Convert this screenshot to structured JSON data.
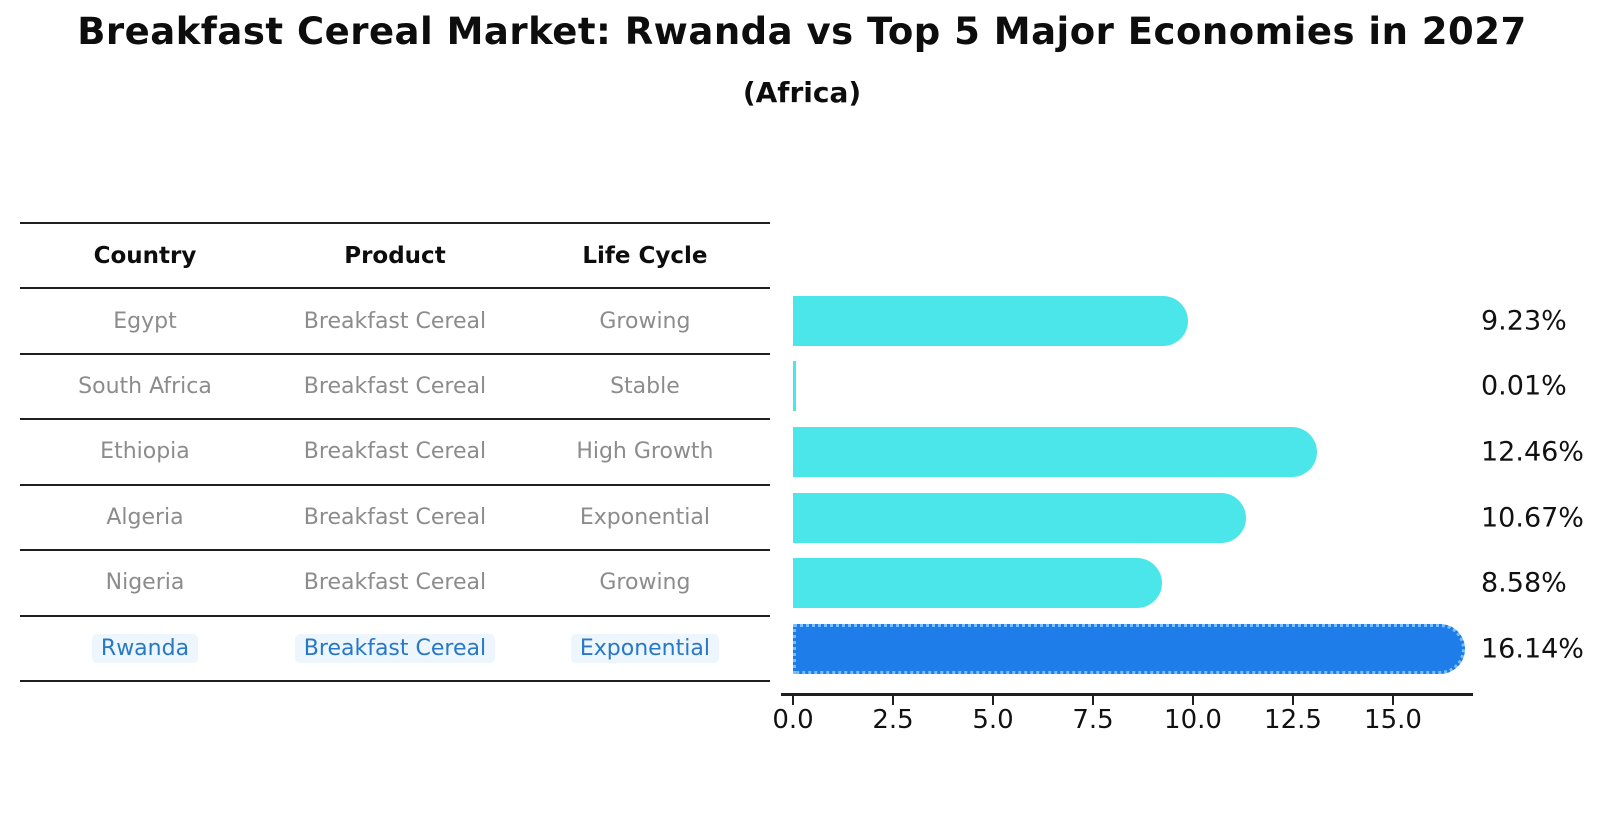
{
  "chart_data": {
    "type": "bar",
    "orientation": "horizontal",
    "title": "Breakfast Cereal Market: Rwanda vs Top 5 Major Economies in 2027",
    "subtitle": "(Africa)",
    "columns": [
      "Country",
      "Product",
      "Life Cycle"
    ],
    "rows": [
      {
        "country": "Egypt",
        "product": "Breakfast Cereal",
        "life_cycle": "Growing",
        "value": 9.23,
        "label": "9.23%",
        "highlight": false
      },
      {
        "country": "South Africa",
        "product": "Breakfast Cereal",
        "life_cycle": "Stable",
        "value": 0.01,
        "label": "0.01%",
        "highlight": false
      },
      {
        "country": "Ethiopia",
        "product": "Breakfast Cereal",
        "life_cycle": "High Growth",
        "value": 12.46,
        "label": "12.46%",
        "highlight": false
      },
      {
        "country": "Algeria",
        "product": "Breakfast Cereal",
        "life_cycle": "Exponential",
        "value": 10.67,
        "label": "10.67%",
        "highlight": false
      },
      {
        "country": "Nigeria",
        "product": "Breakfast Cereal",
        "life_cycle": "Growing",
        "value": 8.58,
        "label": "8.58%",
        "highlight": false
      },
      {
        "country": "Rwanda",
        "product": "Breakfast Cereal",
        "life_cycle": "Exponential",
        "value": 16.14,
        "label": "16.14%",
        "highlight": true
      }
    ],
    "x_ticks": [
      0.0,
      2.5,
      5.0,
      7.5,
      10.0,
      12.5,
      15.0
    ],
    "x_tick_labels": [
      "0.0",
      "2.5",
      "5.0",
      "7.5",
      "10.0",
      "12.5",
      "15.0"
    ],
    "xlim": [
      0,
      17.0
    ],
    "xlabel": "",
    "ylabel": "",
    "grid": "off",
    "legend": "none",
    "colors": {
      "bar": "#4be6ea",
      "highlight_bar": "#1e7de8",
      "highlight_border": "#79bfff",
      "highlight_text": "#2878c8",
      "row_text": "#8c8c8c",
      "header_text": "#0d0d0d",
      "axis": "#1f1f1f"
    }
  }
}
